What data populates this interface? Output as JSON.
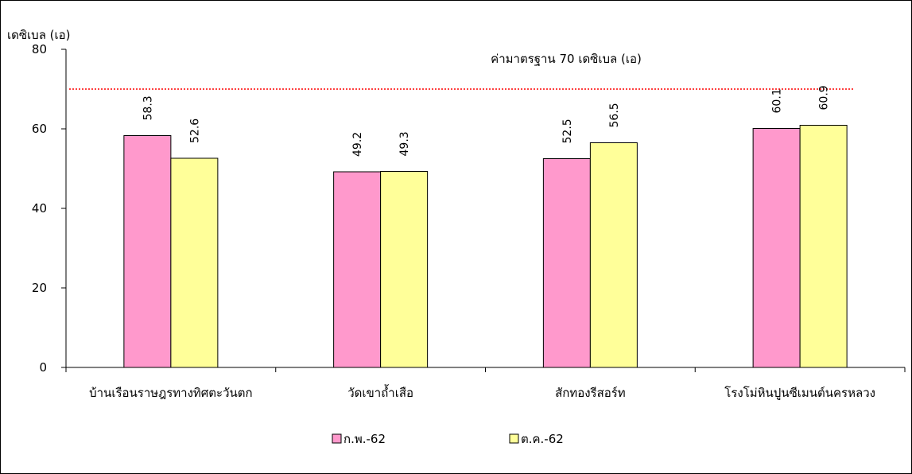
{
  "chart_data": {
    "type": "bar",
    "title": "",
    "ylabel": "เดซิเบล (เอ)",
    "xlabel": "",
    "ylim": [
      0,
      80
    ],
    "yticks": [
      0,
      20,
      40,
      60,
      80
    ],
    "categories": [
      "บ้านเรือนราษฎรทางทิศตะวันตก",
      "วัดเขาถ้ำเสือ",
      "สักทองรีสอร์ท",
      "โรงโม่หินปูนซีเมนต์นครหลวง"
    ],
    "series": [
      {
        "name": "ก.พ.-62",
        "color": "#ff99cc",
        "values": [
          58.3,
          49.2,
          52.5,
          60.1
        ]
      },
      {
        "name": "ต.ค.-62",
        "color": "#ffff99",
        "values": [
          52.6,
          49.3,
          56.5,
          60.9
        ]
      }
    ],
    "reference_line": {
      "value": 70,
      "label": "ค่ามาตรฐาน 70 เดซิเบล (เอ)",
      "color": "#ff0000",
      "style": "dotted"
    },
    "grid": false,
    "legend_position": "bottom"
  }
}
